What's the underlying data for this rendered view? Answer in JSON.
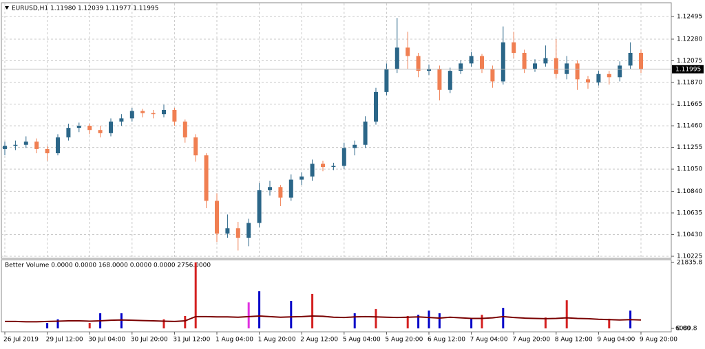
{
  "chart_data": [
    {
      "type": "candlestick",
      "title": "EURUSD,H1  1.11980 1.12039 1.11977 1.11995",
      "categories": [
        "26 Jul 2019",
        null,
        null,
        null,
        "29 Jul 12:00",
        null,
        null,
        null,
        "30 Jul 04:00",
        null,
        null,
        null,
        "30 Jul 20:00",
        null,
        null,
        null,
        "31 Jul 12:00",
        null,
        null,
        null,
        "1 Aug 04:00",
        null,
        null,
        null,
        "1 Aug 20:00",
        null,
        null,
        null,
        "2 Aug 12:00",
        null,
        null,
        null,
        "5 Aug 04:00",
        null,
        null,
        null,
        "5 Aug 20:00",
        null,
        null,
        null,
        "6 Aug 12:00",
        null,
        null,
        null,
        "7 Aug 04:00",
        null,
        null,
        null,
        "7 Aug 20:00",
        null,
        null,
        null,
        "8 Aug 12:00",
        null,
        null,
        null,
        "9 Aug 04:00",
        null,
        null,
        null,
        "9 Aug 20:00"
      ],
      "open": [
        1.1124,
        1.1127,
        1.1128,
        1.1131,
        1.1124,
        1.112,
        1.1135,
        1.1144,
        1.1146,
        1.1142,
        1.1139,
        1.115,
        1.1153,
        1.116,
        1.1158,
        1.1157,
        1.1161,
        1.115,
        1.1135,
        1.1118,
        1.1075,
        1.1044,
        1.1049,
        1.104,
        1.1054,
        1.1085,
        1.1088,
        1.1078,
        1.1095,
        1.1098,
        1.111,
        1.1107,
        1.1108,
        1.1125,
        1.1128,
        1.115,
        1.1178,
        1.12,
        1.122,
        1.1212,
        1.1198,
        1.12,
        1.118,
        1.1198,
        1.1205,
        1.1212,
        1.12,
        1.1188,
        1.1225,
        1.1215,
        1.12,
        1.1205,
        1.121,
        1.1195,
        1.1205,
        1.119,
        1.1187,
        1.1195,
        1.1192,
        1.1203,
        1.1215
      ],
      "high": [
        1.1131,
        1.1132,
        1.1136,
        1.1134,
        1.1127,
        1.1138,
        1.1148,
        1.1149,
        1.1148,
        1.1146,
        1.1153,
        1.1157,
        1.1163,
        1.1162,
        1.1161,
        1.1166,
        1.1163,
        1.1152,
        1.1138,
        1.112,
        1.1082,
        1.1062,
        1.1055,
        1.1058,
        1.1092,
        1.1094,
        1.109,
        1.11,
        1.1102,
        1.1114,
        1.1113,
        1.1111,
        1.113,
        1.1132,
        1.1155,
        1.1182,
        1.1205,
        1.1248,
        1.1235,
        1.1215,
        1.1204,
        1.1203,
        1.1201,
        1.1208,
        1.1216,
        1.1214,
        1.1203,
        1.124,
        1.1235,
        1.1218,
        1.1209,
        1.1222,
        1.1228,
        1.1212,
        1.1208,
        1.1193,
        1.1198,
        1.1198,
        1.1207,
        1.1225,
        1.1218
      ],
      "low": [
        1.1118,
        1.1123,
        1.1125,
        1.112,
        1.1113,
        1.1118,
        1.1132,
        1.114,
        1.1138,
        1.1135,
        1.1136,
        1.1146,
        1.115,
        1.1154,
        1.1153,
        1.1154,
        1.1146,
        1.113,
        1.1112,
        1.1068,
        1.1036,
        1.104,
        1.1028,
        1.1032,
        1.105,
        1.108,
        1.107,
        1.1075,
        1.109,
        1.1094,
        1.1103,
        1.1104,
        1.1105,
        1.1118,
        1.1125,
        1.1147,
        1.1175,
        1.1196,
        1.12,
        1.1192,
        1.1194,
        1.117,
        1.1177,
        1.1195,
        1.1202,
        1.1196,
        1.1182,
        1.1185,
        1.121,
        1.1196,
        1.1197,
        1.1202,
        1.1191,
        1.119,
        1.118,
        1.1181,
        1.1184,
        1.1185,
        1.1188,
        1.12,
        1.1196
      ],
      "close": [
        1.1127,
        1.1128,
        1.1131,
        1.1124,
        1.112,
        1.1135,
        1.1144,
        1.1146,
        1.1142,
        1.1139,
        1.115,
        1.1153,
        1.116,
        1.1158,
        1.1157,
        1.1161,
        1.115,
        1.1135,
        1.1118,
        1.1075,
        1.1044,
        1.1049,
        1.104,
        1.1054,
        1.1085,
        1.1088,
        1.1078,
        1.1095,
        1.1098,
        1.111,
        1.1107,
        1.1108,
        1.1125,
        1.1128,
        1.115,
        1.1178,
        1.12,
        1.122,
        1.1212,
        1.1198,
        1.12,
        1.118,
        1.1198,
        1.1205,
        1.1212,
        1.12,
        1.1188,
        1.1225,
        1.1215,
        1.12,
        1.1205,
        1.121,
        1.1195,
        1.1205,
        1.119,
        1.1187,
        1.1195,
        1.1192,
        1.1203,
        1.1215,
        1.11995
      ],
      "up_color": "#2b6688",
      "down_color": "#f07f52",
      "ylim": [
        1.10212,
        1.12618
      ],
      "yticks": [
        1.12495,
        {
          "value": 1.1228,
          "label": "1.12280"
        },
        1.12075,
        {
          "value": 1.1187,
          "label": "1.11870"
        },
        1.11665,
        {
          "value": 1.1146,
          "label": "1.11460"
        },
        1.11255,
        {
          "value": 1.1105,
          "label": "1.11050"
        },
        {
          "value": 1.1084,
          "label": "1.10840"
        },
        1.10635,
        {
          "value": 1.1043,
          "label": "1.10430"
        },
        1.10225
      ],
      "last_price": 1.11995,
      "grid": true
    },
    {
      "type": "bar",
      "title": "Better Volume 0.0000 0.0000 168.0000 0.0000 0.0000 2756.0000",
      "values": [
        null,
        null,
        null,
        null,
        1800,
        3000,
        null,
        null,
        1800,
        5000,
        null,
        5000,
        null,
        null,
        null,
        3000,
        null,
        4100,
        21835.8,
        null,
        null,
        null,
        null,
        8600,
        12300,
        null,
        null,
        9100,
        null,
        11400,
        null,
        null,
        null,
        5000,
        null,
        6400,
        null,
        null,
        4100,
        4500,
        5900,
        5000,
        null,
        null,
        3400,
        4500,
        null,
        6800,
        null,
        null,
        null,
        3600,
        null,
        9300,
        null,
        null,
        null,
        3200,
        null,
        5900,
        null
      ],
      "colors": [
        null,
        null,
        null,
        null,
        "#0000c8",
        "#0000c8",
        null,
        null,
        "#d42020",
        "#0000c8",
        null,
        "#0000c8",
        null,
        null,
        null,
        "#d42020",
        null,
        "#d42020",
        "#d42020",
        null,
        null,
        null,
        null,
        "#e030e0",
        "#0000c8",
        null,
        null,
        "#0000c8",
        null,
        "#d42020",
        null,
        null,
        null,
        "#0000c8",
        null,
        "#d42020",
        null,
        null,
        "#d42020",
        "#0000c8",
        "#0000c8",
        "#0000c8",
        null,
        null,
        "#0000c8",
        "#d42020",
        null,
        "#0000c8",
        null,
        null,
        null,
        "#d42020",
        null,
        "#d42020",
        null,
        null,
        null,
        "#d42020",
        null,
        "#0000c8",
        null
      ],
      "line_values": [
        2300,
        2300,
        2200,
        2200,
        2300,
        2400,
        2500,
        2500,
        2400,
        2500,
        2700,
        2800,
        2700,
        2600,
        2500,
        2400,
        2300,
        2500,
        3900,
        3900,
        3800,
        3800,
        3700,
        3900,
        4100,
        3900,
        3700,
        3800,
        3900,
        4100,
        4000,
        3700,
        3600,
        3800,
        3900,
        3800,
        3700,
        3600,
        3700,
        3800,
        3600,
        3400,
        3700,
        3500,
        3300,
        3300,
        3500,
        3900,
        3600,
        3400,
        3300,
        3200,
        3300,
        3500,
        3300,
        3200,
        3000,
        2900,
        2800,
        2900,
        2800
      ],
      "line_color": "#7a0000",
      "ylim": [
        0,
        21835.8
      ],
      "yticks": [
        21835.8,
        {
          "value": 0,
          "label": "0.00"
        }
      ],
      "last_value": 6089.8
    }
  ]
}
